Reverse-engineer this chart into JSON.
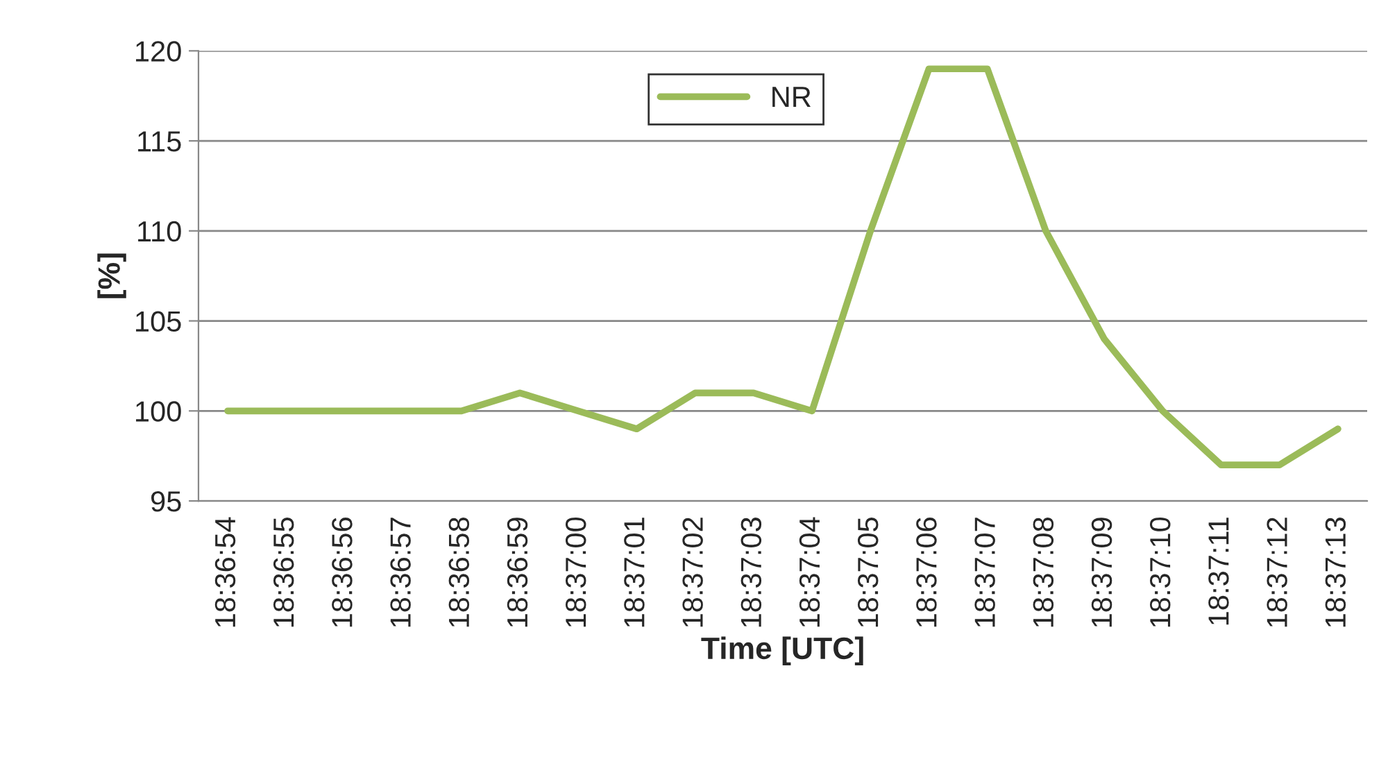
{
  "chart_data": {
    "type": "line",
    "xlabel": "Time [UTC]",
    "ylabel": "[%]",
    "categories": [
      "18:36:54",
      "18:36:55",
      "18:36:56",
      "18:36:57",
      "18:36:58",
      "18:36:59",
      "18:37:00",
      "18:37:01",
      "18:37:02",
      "18:37:03",
      "18:37:04",
      "18:37:05",
      "18:37:06",
      "18:37:07",
      "18:37:08",
      "18:37:09",
      "18:37:10",
      "18:37:11",
      "18:37:12",
      "18:37:13"
    ],
    "series": [
      {
        "name": "NR",
        "color": "#9bbb59",
        "values": [
          100,
          100,
          100,
          100,
          100,
          101,
          100,
          99,
          101,
          101,
          100,
          110,
          119,
          119,
          110,
          104,
          100,
          97,
          97,
          99
        ]
      }
    ],
    "ylim": [
      95,
      120
    ],
    "yticks": [
      95,
      100,
      105,
      110,
      115,
      120
    ],
    "grid": "y",
    "legend": "top",
    "marker": "none",
    "line_style": "solid"
  }
}
